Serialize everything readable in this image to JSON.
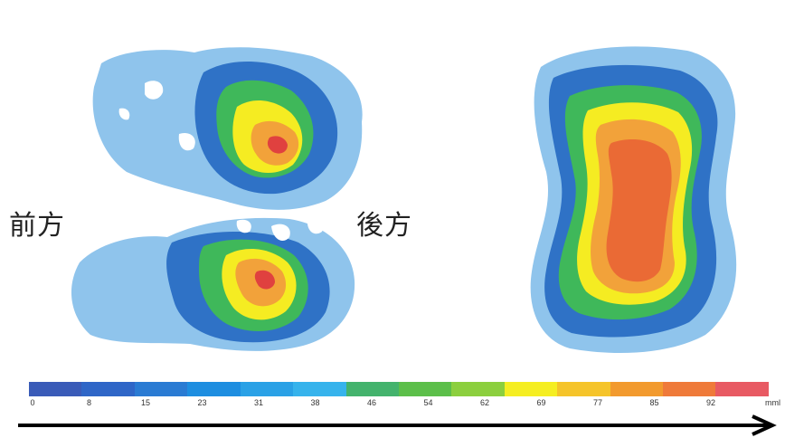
{
  "labels": {
    "front": "前方",
    "back": "後方"
  },
  "scale": {
    "ticks": [
      "0",
      "8",
      "15",
      "23",
      "31",
      "38",
      "46",
      "54",
      "62",
      "69",
      "77",
      "85",
      "92"
    ],
    "unit": "mml",
    "colors": [
      "#3a5bb8",
      "#2f66c7",
      "#2a7bd3",
      "#1e8ee0",
      "#2aa1e6",
      "#36b3ec",
      "#44b36d",
      "#5cbf4a",
      "#8ccf3e",
      "#f5ee22",
      "#f5c42a",
      "#f29a2e",
      "#ef7a3a",
      "#e85a63"
    ]
  },
  "pressure_colors": {
    "light_blue": "#8fc4ec",
    "blue": "#2f72c6",
    "green": "#3fb85a",
    "yellow_green": "#b7d83a",
    "yellow": "#f5ec22",
    "orange": "#f2a23a",
    "red_orange": "#ea6a35",
    "red": "#e0413f"
  }
}
